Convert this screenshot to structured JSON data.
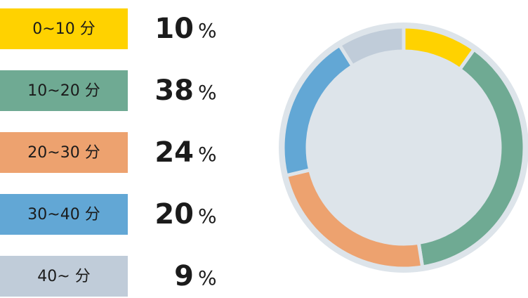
{
  "chart_data": {
    "type": "pie",
    "categories": [
      "0~10 分",
      "10~20 分",
      "20~30 分",
      "30~40 分",
      "40~ 分"
    ],
    "values": [
      10,
      38,
      24,
      20,
      9
    ],
    "unit": "%",
    "colors": [
      "#ffd200",
      "#6faa93",
      "#eda26f",
      "#62a7d5",
      "#c0ccd9"
    ],
    "donut": true
  }
}
